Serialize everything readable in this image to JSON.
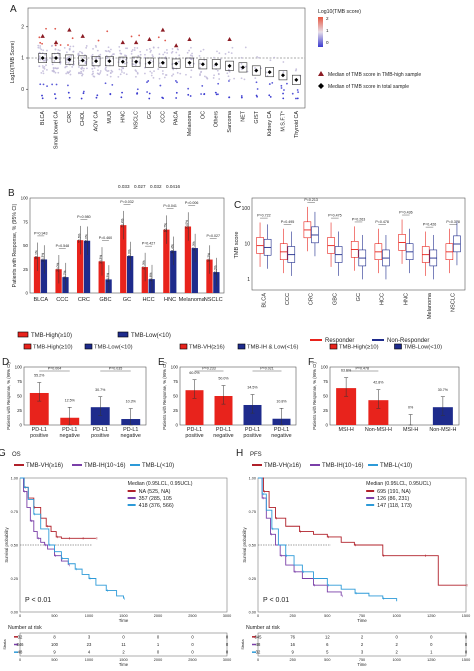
{
  "chart_data": [
    {
      "panel": "A",
      "type": "scatter",
      "ylabel": "Log10(TMB Score)",
      "categories": [
        "BLCA",
        "Small bowel CA",
        "CRC",
        "CHOL",
        "AOV CA",
        "MUO",
        "HNC",
        "NSCLC",
        "GC",
        "CCC",
        "PACA",
        "Melanoma",
        "OC",
        "Others",
        "Sarcoma",
        "NET",
        "GIST",
        "Kidney CA",
        "M.S.F.T*",
        "Thyroid CA"
      ],
      "median_total": [
        1.0,
        1.0,
        0.95,
        0.92,
        0.9,
        0.9,
        0.88,
        0.88,
        0.85,
        0.85,
        0.82,
        0.85,
        0.8,
        0.8,
        0.75,
        0.7,
        0.6,
        0.55,
        0.45,
        0.3
      ],
      "median_high": [
        1.7,
        1.5,
        1.9,
        1.7,
        null,
        null,
        1.5,
        1.5,
        1.6,
        1.9,
        1.4,
        1.6,
        null,
        null,
        1.6,
        null,
        null,
        null,
        null,
        null
      ],
      "yticks": [
        "2",
        "1",
        "0"
      ],
      "ylim": [
        -0.6,
        2.6
      ],
      "threshold": 1.0,
      "legend": {
        "colorbar_title": "Log10(TMB score)",
        "colorbar_ticks": [
          "2",
          "1",
          "0"
        ],
        "high_label": "Median of TMB score in TMB-high sample",
        "total_label": "Median of TMB score in total sample"
      },
      "colors": {
        "high": "#d93a2b",
        "low": "#3b3bd0",
        "mid": "#bfb8d8",
        "triangle": "#8c1c24"
      }
    },
    {
      "panel": "B",
      "type": "bar",
      "ylabel": "Patients with Response, % (95% CI)",
      "categories": [
        "BLCA",
        "CCC",
        "CRC",
        "GBC",
        "GC",
        "HCC",
        "HNC",
        "Melanoma",
        "NSCLC"
      ],
      "series": [
        {
          "name": "TMB-High(≥10)",
          "values": [
            38.1,
            25.0,
            55.6,
            33.3,
            71.4,
            27.3,
            66.7,
            70.0,
            35.2
          ],
          "color": "#e8231c"
        },
        {
          "name": "TMB-Low(<10)",
          "values": [
            35.3,
            16.7,
            55.0,
            14.3,
            38.9,
            14.6,
            44.4,
            47.3,
            22.0
          ],
          "color": "#1e2b8c"
        }
      ],
      "pvalues": [
        "P=0.943",
        "P=0.548",
        "P=0.980",
        "P=0.460",
        "P=0.032",
        "P=0.427",
        "P=0.041",
        "P=0.006",
        "P=0.027"
      ],
      "bottom_pvalues": [
        "0.033",
        "0.027",
        "0.032",
        "0.0416"
      ],
      "yticks": [
        "100",
        "75",
        "50",
        "25",
        "0"
      ],
      "ylim": [
        0,
        100
      ]
    },
    {
      "panel": "C",
      "type": "box",
      "ylabel": "TMB score",
      "categories": [
        "BLCA",
        "CCC",
        "CRC",
        "GBC",
        "GC",
        "HCC",
        "HNC",
        "Melanoma",
        "NSCLC"
      ],
      "series": [
        {
          "name": "Responder",
          "color": "#e8231c"
        },
        {
          "name": "Non-Responder",
          "color": "#1e2b8c"
        }
      ],
      "responder_median": [
        9,
        6,
        25,
        9,
        7,
        6,
        11,
        5,
        6
      ],
      "nonresponder_median": [
        8,
        5,
        18,
        5,
        4,
        4,
        6,
        4,
        10
      ],
      "pvalues": [
        "P=0.722",
        "P=0.495",
        "P=0.213",
        "P=0.475",
        "P=0.263",
        "P=0.478",
        "P=0.436",
        "P=0.426",
        "P=0.378"
      ],
      "yticks": [
        "100",
        "10",
        "1"
      ],
      "ylim": [
        0.5,
        200
      ],
      "scale": "log"
    },
    {
      "panel": "D",
      "type": "bar",
      "ylabel": "Patients with Response, % (95% CI)",
      "legend": [
        "TMB-High(≥10)",
        "TMB-Low(<10)"
      ],
      "categories": [
        "PD-L1 positive",
        "PD-L1 negative",
        "PD-L1 positive",
        "PD-L1 negative"
      ],
      "values": [
        55.2,
        12.5,
        30.7,
        10.3
      ],
      "value_labels": [
        "55.2%",
        "12.5%",
        "30.7%",
        "10.3%"
      ],
      "colors": [
        "#e8231c",
        "#e8231c",
        "#1e2b8c",
        "#1e2b8c"
      ],
      "pvalues": [
        "P=0.004",
        "P=0.035"
      ],
      "yticks": [
        "100",
        "75",
        "50",
        "25",
        "0"
      ],
      "ylim": [
        0,
        100
      ]
    },
    {
      "panel": "E",
      "type": "bar",
      "ylabel": "Patients with Response, % (95% CI)",
      "legend": [
        "TMB-VH(≥16)",
        "TMB-IH & Low(<16)"
      ],
      "categories": [
        "PD-L1 positive",
        "PD-L1 negative",
        "PD-L1 positive",
        "PD-L1 negative"
      ],
      "values": [
        60.0,
        50.0,
        34.5,
        10.8
      ],
      "value_labels": [
        "60.0%",
        "50.0%",
        "34.5%",
        "10.8%"
      ],
      "colors": [
        "#e8231c",
        "#e8231c",
        "#1e2b8c",
        "#1e2b8c"
      ],
      "pvalues": [
        "P=0.233",
        "P=0.021"
      ],
      "yticks": [
        "100",
        "75",
        "50",
        "25",
        "0"
      ],
      "ylim": [
        0,
        100
      ]
    },
    {
      "panel": "F",
      "type": "bar",
      "ylabel": "Patients with Response, % (95% CI)",
      "legend": [
        "TMB-High(≥10)",
        "TMB-Low(<10)"
      ],
      "categories": [
        "MSI-H",
        "Non-MSI-H",
        "MSI-H",
        "Non-MSI-H"
      ],
      "values": [
        63.6,
        42.8,
        0,
        30.7
      ],
      "value_labels": [
        "63.6%",
        "42.8%",
        "0%",
        "30.7%"
      ],
      "colors": [
        "#e8231c",
        "#e8231c",
        "#1e2b8c",
        "#1e2b8c"
      ],
      "pvalues": [
        "P=0.478"
      ],
      "yticks": [
        "100",
        "75",
        "50",
        "25",
        "0"
      ],
      "ylim": [
        0,
        100
      ]
    },
    {
      "panel": "G",
      "type": "line",
      "title": "OS",
      "ylabel": "Survival probability",
      "xlabel": "Time",
      "legend": [
        "TMB-VH(≥16)",
        "TMB-IH(10~16)",
        "TMB-L(<10)"
      ],
      "median_header": "Median (0.95LCL, 0.95UCL)",
      "median_values": [
        "NA  (525, NA)",
        "357 (285, 105",
        "418 (376, 566)"
      ],
      "pvalue": "P < 0.01",
      "xticks": [
        "0",
        "500",
        "1000",
        "1500",
        "2000",
        "2500",
        "3000"
      ],
      "yticks": [
        "1.00",
        "0.75",
        "0.50",
        "0.25",
        "0.00"
      ],
      "xlim": [
        0,
        3000
      ],
      "ylim": [
        0,
        1
      ],
      "series": [
        {
          "name": "TMB-VH(≥16)",
          "color": "#b0202a",
          "x": [
            0,
            60,
            120,
            200,
            300,
            380,
            450,
            525,
            600,
            700,
            800,
            900,
            1000,
            1100
          ],
          "y": [
            1.0,
            0.93,
            0.85,
            0.78,
            0.7,
            0.64,
            0.6,
            0.56,
            0.55,
            0.55,
            0.55,
            0.55,
            0.55,
            0.55
          ]
        },
        {
          "name": "TMB-IH(10~16)",
          "color": "#7a3fa8",
          "x": [
            0,
            50,
            100,
            150,
            200,
            250,
            300,
            357,
            400,
            500,
            600,
            700
          ],
          "y": [
            1.0,
            0.9,
            0.78,
            0.68,
            0.6,
            0.55,
            0.52,
            0.5,
            0.47,
            0.42,
            0.38,
            0.35
          ]
        },
        {
          "name": "TMB-L(<10)",
          "color": "#2d9ad8",
          "x": [
            0,
            60,
            120,
            200,
            300,
            418,
            500,
            600,
            700,
            800,
            900,
            1000,
            1100,
            1250,
            1400,
            1500
          ],
          "y": [
            1.0,
            0.93,
            0.84,
            0.73,
            0.62,
            0.5,
            0.45,
            0.4,
            0.36,
            0.32,
            0.28,
            0.25,
            0.2,
            0.16,
            0.12,
            0.1
          ]
        }
      ],
      "risk_table": {
        "title": "Number at risk",
        "ylabel": "Strata",
        "rows": [
          {
            "color": "#b0202a",
            "counts": [
              "32",
              "8",
              "3",
              "0",
              "0",
              "0",
              "0"
            ]
          },
          {
            "color": "#7a3fa8",
            "counts": [
              "346",
              "100",
              "23",
              "11",
              "1",
              "0",
              "0"
            ]
          },
          {
            "color": "#2d9ad8",
            "counts": [
              "48",
              "9",
              "4",
              "2",
              "0",
              "0",
              "0"
            ]
          }
        ]
      }
    },
    {
      "panel": "H",
      "type": "line",
      "title": "PFS",
      "ylabel": "Survival probability",
      "xlabel": "Time",
      "legend": [
        "TMB-VH(≥16)",
        "TMB-IH(10~16)",
        "TMB-L(<10)"
      ],
      "median_header": "Median (0.95LCL, 0.95UCL)",
      "median_values": [
        "695  (191, NA)",
        "126  (86, 231)",
        "147  (118, 173)"
      ],
      "pvalue": "P < 0.01",
      "xticks": [
        "0",
        "250",
        "500",
        "750",
        "1000",
        "1250",
        "1500"
      ],
      "yticks": [
        "1.00",
        "0.75",
        "0.50",
        "0.25",
        "0.00"
      ],
      "xlim": [
        0,
        1500
      ],
      "ylim": [
        0,
        1
      ],
      "series": [
        {
          "name": "TMB-VH(≥16)",
          "color": "#b0202a",
          "x": [
            0,
            40,
            80,
            126,
            200,
            300,
            400,
            500,
            600,
            695,
            800,
            900,
            1000,
            1200,
            1300,
            1500
          ],
          "y": [
            1.0,
            0.9,
            0.78,
            0.7,
            0.64,
            0.6,
            0.58,
            0.56,
            0.52,
            0.5,
            0.5,
            0.42,
            0.42,
            0.42,
            0.2,
            0.2
          ]
        },
        {
          "name": "TMB-IH(10~16)",
          "color": "#7a3fa8",
          "x": [
            0,
            30,
            60,
            90,
            126,
            160,
            200,
            260,
            320,
            400,
            500,
            600
          ],
          "y": [
            1.0,
            0.85,
            0.7,
            0.58,
            0.5,
            0.42,
            0.35,
            0.3,
            0.25,
            0.2,
            0.15,
            0.12
          ]
        },
        {
          "name": "TMB-L(<10)",
          "color": "#2d9ad8",
          "x": [
            0,
            30,
            60,
            100,
            147,
            200,
            260,
            320,
            400,
            500,
            600,
            700,
            800,
            900,
            1000
          ],
          "y": [
            1.0,
            0.88,
            0.76,
            0.62,
            0.5,
            0.42,
            0.35,
            0.3,
            0.25,
            0.2,
            0.17,
            0.14,
            0.12,
            0.1,
            0.08
          ]
        }
      ],
      "risk_table": {
        "title": "Number at risk",
        "ylabel": "Strata",
        "rows": [
          {
            "color": "#b0202a",
            "counts": [
              "345",
              "76",
              "12",
              "2",
              "0",
              "0",
              "0"
            ]
          },
          {
            "color": "#7a3fa8",
            "counts": [
              "48",
              "16",
              "6",
              "2",
              "2",
              "0",
              "0"
            ]
          },
          {
            "color": "#2d9ad8",
            "counts": [
              "32",
              "9",
              "5",
              "3",
              "2",
              "1",
              "0"
            ]
          }
        ]
      }
    }
  ]
}
